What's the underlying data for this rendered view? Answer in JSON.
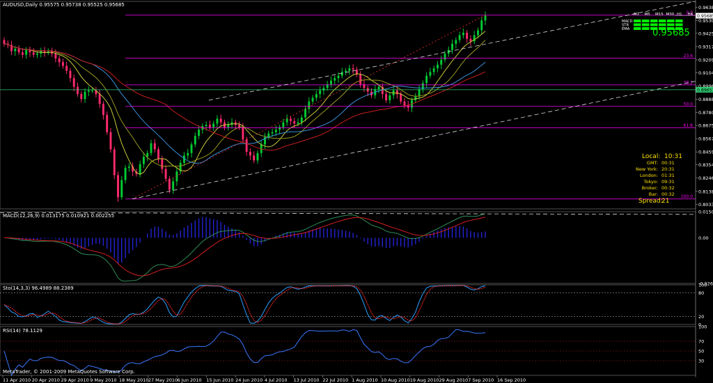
{
  "window": {
    "header": "AUDUSD,Daily  0.95575 0.95738 0.95525 0.95685",
    "footer": "MetaTrader, © 2001-2009 MetaQuotes Software Corp."
  },
  "colors": {
    "background": "#000000",
    "bull": "#00cc33",
    "bear": "#ff2a6d",
    "fibo": "#ff00ff",
    "channel": "#dcdcdc",
    "macd_main": "#2e8b57",
    "macd_signal": "#d61e1e",
    "macd_hist": "#2323d8",
    "stoch_main": "#2aa0ff",
    "stoch_signal": "#ff2a2a",
    "rsi": "#3a78ff",
    "ma_yellow": "#c9c93a",
    "ma_olive": "#9a9a20",
    "ma_blue": "#3a8fd8",
    "ma_red": "#c81e1e",
    "clock_text": "#ffe100",
    "big_price": "#00ff00"
  },
  "info_panel": {
    "headers": [
      "M1",
      "M5",
      "M15",
      "M30",
      "H1",
      "H4"
    ],
    "rows": [
      "MACD",
      "STR",
      "EMA"
    ],
    "big_price": "0.95685"
  },
  "clock": {
    "local_label": "Local:",
    "local_time": "10:31",
    "rows": [
      {
        "label": "GMT:",
        "value": "00:31"
      },
      {
        "label": "New York:",
        "value": "20:31"
      },
      {
        "label": "London:",
        "value": "01:31"
      },
      {
        "label": "Tokyo:",
        "value": "09:31"
      },
      {
        "label": "Broker:",
        "value": "00:32"
      },
      {
        "label": "Bar:",
        "value": "00:32"
      }
    ],
    "spread_label": "Spread:",
    "spread_value": "21"
  },
  "chart_data": {
    "type": "candlestick",
    "symbol": "AUDUSD",
    "timeframe": "Daily",
    "ohlc_last": {
      "open": 0.95575,
      "high": 0.95738,
      "low": 0.95525,
      "close": 0.95685
    },
    "price_axis": {
      "min": 0.7995,
      "max": 0.9685,
      "ticks": [
        "0.96380",
        "0.95300",
        "0.94250",
        "0.93170",
        "0.92090",
        "0.91040",
        "0.89960",
        "0.88880",
        "0.87800",
        "0.86750",
        "0.85670",
        "0.84590",
        "0.83540",
        "0.82460",
        "0.81380",
        "0.80330"
      ]
    },
    "current_price_label": "0.95685",
    "line_price_label": "0.89653",
    "date_labels": [
      "11 Apr 2010",
      "20 Apr 2010",
      "29 Apr 2010",
      "9 May 2010",
      "18 May 2010",
      "27 May 2010",
      "6 Jun 2010",
      "15 Jun 2010",
      "24 Jun 2010",
      "4 Jul 2010",
      "13 Jul 2010",
      "22 Jul 2010",
      "1 Aug 2010",
      "10 Aug 2010",
      "19 Aug 2010",
      "29 Aug 2010",
      "7 Sep 2010",
      "16 Sep 2010"
    ],
    "fibonacci": {
      "levels": [
        {
          "label": "0.0",
          "price": 0.9573
        },
        {
          "label": "23.6",
          "price": 0.9223
        },
        {
          "label": "38.2",
          "price": 0.9005
        },
        {
          "label": "50.0",
          "price": 0.883
        },
        {
          "label": "61.8",
          "price": 0.8655
        },
        {
          "label": "100.0",
          "price": 0.8076
        }
      ]
    },
    "close_series": [
      0.934,
      0.933,
      0.928,
      0.93,
      0.927,
      0.925,
      0.929,
      0.927,
      0.925,
      0.926,
      0.928,
      0.927,
      0.928,
      0.926,
      0.922,
      0.919,
      0.916,
      0.912,
      0.906,
      0.899,
      0.893,
      0.889,
      0.895,
      0.896,
      0.896,
      0.893,
      0.885,
      0.876,
      0.862,
      0.848,
      0.827,
      0.809,
      0.823,
      0.833,
      0.834,
      0.83,
      0.828,
      0.836,
      0.842,
      0.845,
      0.853,
      0.848,
      0.84,
      0.832,
      0.824,
      0.815,
      0.822,
      0.83,
      0.837,
      0.843,
      0.845,
      0.852,
      0.859,
      0.864,
      0.867,
      0.868,
      0.866,
      0.869,
      0.873,
      0.87,
      0.866,
      0.868,
      0.87,
      0.868,
      0.866,
      0.856,
      0.846,
      0.843,
      0.839,
      0.845,
      0.852,
      0.858,
      0.861,
      0.862,
      0.864,
      0.866,
      0.87,
      0.873,
      0.871,
      0.869,
      0.87,
      0.874,
      0.881,
      0.887,
      0.89,
      0.893,
      0.896,
      0.898,
      0.901,
      0.904,
      0.906,
      0.908,
      0.911,
      0.912,
      0.914,
      0.913,
      0.909,
      0.901,
      0.898,
      0.895,
      0.892,
      0.897,
      0.899,
      0.893,
      0.888,
      0.892,
      0.896,
      0.893,
      0.887,
      0.884,
      0.882,
      0.888,
      0.891,
      0.897,
      0.902,
      0.908,
      0.911,
      0.914,
      0.917,
      0.921,
      0.926,
      0.929,
      0.934,
      0.937,
      0.941,
      0.943,
      0.938,
      0.936,
      0.941,
      0.945,
      0.953,
      0.9568
    ],
    "macd": {
      "label": "MACD(12,26,9) 0.013175 0.010921 0.002255",
      "axis": [
        "0.01505",
        "0.00",
        "-0.02631"
      ],
      "min": -0.02631,
      "max": 0.01505
    },
    "stochastic": {
      "label": "Sto(14,3,3) 96.4989 88.2389",
      "axis": [
        "100",
        "80",
        "20",
        "0"
      ]
    },
    "rsi": {
      "label": "RSI(14) 78.1129",
      "axis": [
        "100",
        "70",
        "50",
        "30"
      ]
    }
  }
}
